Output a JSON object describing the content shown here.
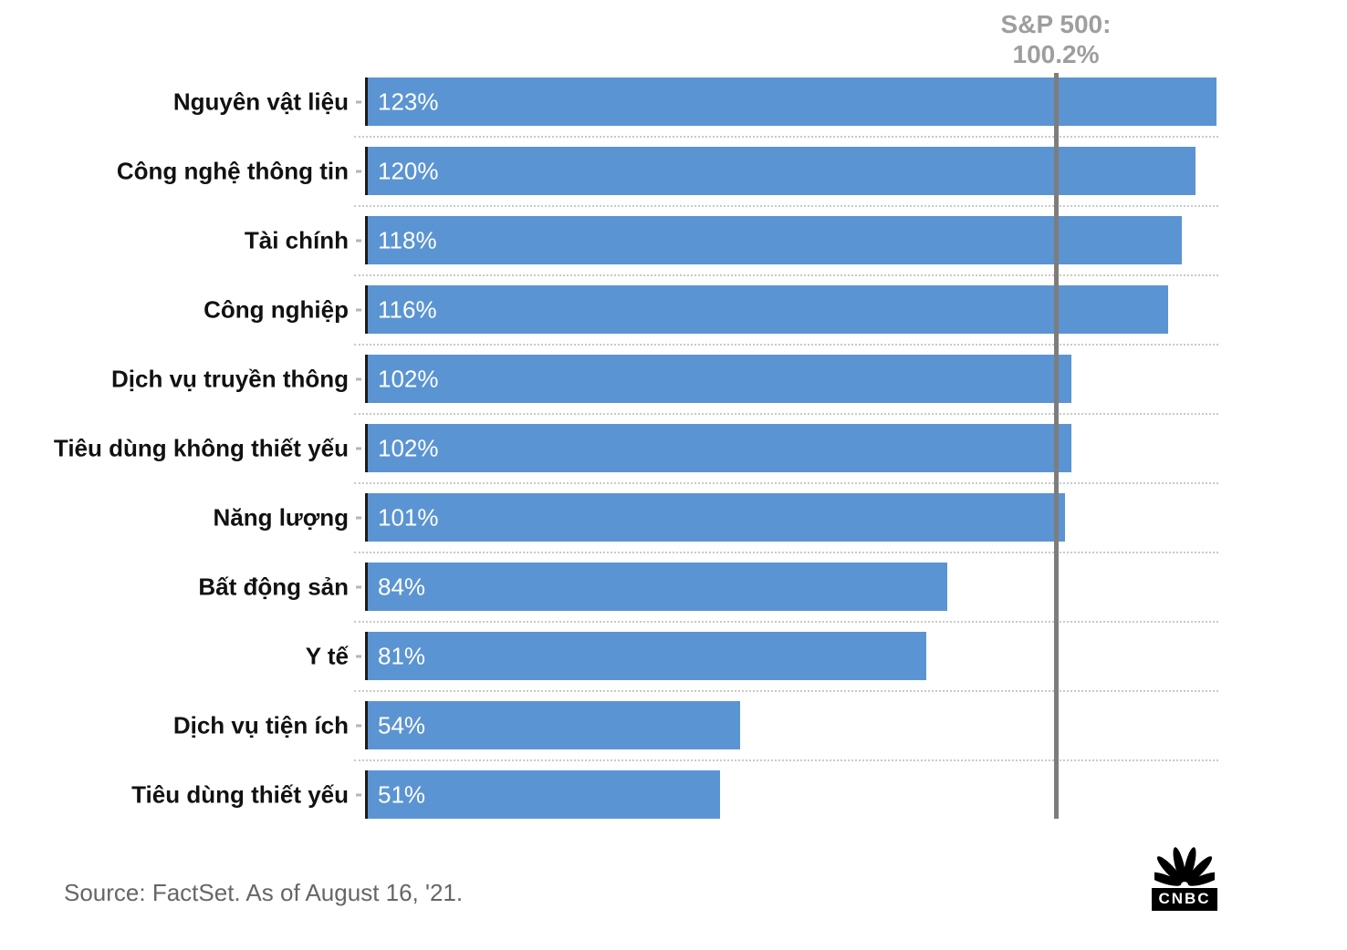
{
  "header": {
    "line1": "S&P 500:",
    "line2": "100.2%"
  },
  "chart_data": {
    "type": "bar",
    "orientation": "horizontal",
    "categories": [
      "Nguyên vật liệu",
      "Công nghệ thông tin",
      "Tài chính",
      "Công nghiệp",
      "Dịch vụ truyền thông",
      "Tiêu dùng không thiết yếu",
      "Năng lượng",
      "Bất động sản",
      "Y tế",
      "Dịch vụ tiện ích",
      "Tiêu dùng thiết yếu"
    ],
    "values": [
      123,
      120,
      118,
      116,
      102,
      102,
      101,
      84,
      81,
      54,
      51
    ],
    "value_labels": [
      "123%",
      "120%",
      "118%",
      "116%",
      "102%",
      "102%",
      "101%",
      "84%",
      "81%",
      "54%",
      "51%"
    ],
    "xlim": [
      0,
      123
    ],
    "grid": "dotted-row-separators",
    "legend": "none",
    "reference_line": {
      "label": "S&P 500:",
      "value": 100.2,
      "value_label": "100.2%"
    },
    "bar_color": "#5b94d2",
    "reference_color": "#7d7d7d"
  },
  "footer": {
    "source": "Source: FactSet. As of August 16, '21.",
    "logo_text": "CNBC"
  }
}
